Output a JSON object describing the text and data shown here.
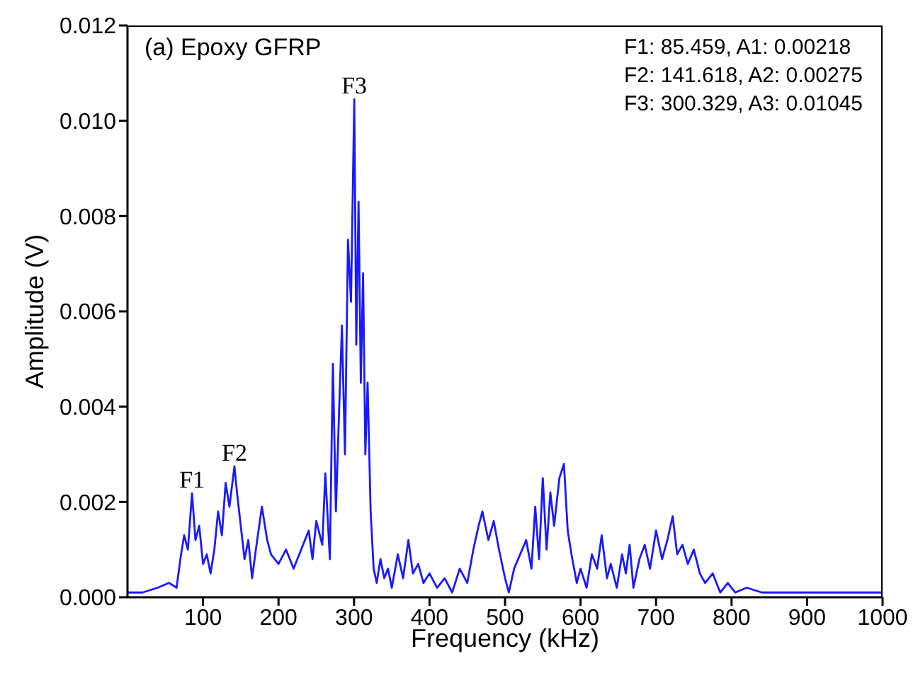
{
  "chart_data": {
    "type": "line",
    "title": "(a) Epoxy GFRP",
    "xlabel": "Frequency (kHz)",
    "ylabel": "Amplitude (V)",
    "x": [
      0,
      20,
      40,
      55,
      65,
      70,
      75,
      80,
      85.459,
      90,
      95,
      100,
      105,
      110,
      115,
      120,
      125,
      130,
      135,
      141.618,
      145,
      150,
      155,
      160,
      165,
      170,
      178,
      185,
      190,
      200,
      210,
      220,
      230,
      240,
      245,
      250,
      258,
      262,
      268,
      272,
      276,
      280,
      284,
      288,
      292,
      296,
      300.329,
      303,
      306,
      309,
      312,
      315,
      318,
      322,
      326,
      330,
      335,
      340,
      345,
      350,
      358,
      365,
      372,
      378,
      385,
      392,
      400,
      410,
      420,
      430,
      440,
      450,
      458,
      465,
      470,
      478,
      485,
      492,
      500,
      505,
      512,
      520,
      528,
      535,
      540,
      545,
      550,
      555,
      560,
      565,
      572,
      578,
      583,
      588,
      595,
      600,
      608,
      615,
      622,
      628,
      635,
      640,
      648,
      655,
      660,
      665,
      670,
      678,
      685,
      692,
      700,
      708,
      715,
      722,
      728,
      735,
      742,
      750,
      758,
      765,
      775,
      785,
      795,
      805,
      820,
      840,
      860,
      900,
      950,
      1000
    ],
    "series": [
      {
        "color": "#1a1aff",
        "values": [
          0.0001,
          0.0001,
          0.0002,
          0.0003,
          0.0002,
          0.0008,
          0.0013,
          0.001,
          0.00218,
          0.0012,
          0.0015,
          0.0007,
          0.0009,
          0.0005,
          0.001,
          0.0018,
          0.0013,
          0.0024,
          0.0019,
          0.00275,
          0.0022,
          0.0015,
          0.0008,
          0.0012,
          0.0004,
          0.001,
          0.0019,
          0.0012,
          0.0009,
          0.0007,
          0.001,
          0.0006,
          0.001,
          0.0014,
          0.0008,
          0.0016,
          0.0011,
          0.0026,
          0.0008,
          0.0049,
          0.0018,
          0.0038,
          0.0057,
          0.003,
          0.0075,
          0.0062,
          0.01045,
          0.0053,
          0.0083,
          0.0045,
          0.0068,
          0.003,
          0.0045,
          0.0018,
          0.0006,
          0.0003,
          0.0008,
          0.0004,
          0.0006,
          0.0002,
          0.0009,
          0.0004,
          0.0012,
          0.0005,
          0.0007,
          0.0003,
          0.0005,
          0.0002,
          0.0004,
          0.0001,
          0.0006,
          0.0003,
          0.001,
          0.0015,
          0.0018,
          0.0012,
          0.0016,
          0.001,
          0.0004,
          0.0001,
          0.0006,
          0.0009,
          0.0012,
          0.0006,
          0.0019,
          0.0008,
          0.0025,
          0.001,
          0.0022,
          0.0015,
          0.0025,
          0.0028,
          0.0014,
          0.0009,
          0.0003,
          0.0006,
          0.0002,
          0.0009,
          0.0006,
          0.0013,
          0.0004,
          0.0007,
          0.0002,
          0.0009,
          0.0005,
          0.0011,
          0.0002,
          0.0008,
          0.0011,
          0.0006,
          0.0014,
          0.0008,
          0.0012,
          0.0017,
          0.0009,
          0.0011,
          0.0007,
          0.001,
          0.0005,
          0.0003,
          0.0005,
          0.0001,
          0.0003,
          0.0001,
          0.0002,
          0.0001,
          0.0001,
          0.0001,
          0.0001,
          0.0001
        ]
      }
    ],
    "xlim": [
      0,
      1000
    ],
    "xticks": [
      100,
      200,
      300,
      400,
      500,
      600,
      700,
      800,
      900,
      1000
    ],
    "ylim": [
      0,
      0.012
    ],
    "yticks": [
      {
        "value": 0,
        "label": "0.000"
      },
      {
        "value": 0.002,
        "label": "0.002"
      },
      {
        "value": 0.004,
        "label": "0.004"
      },
      {
        "value": 0.006,
        "label": "0.006"
      },
      {
        "value": 0.008,
        "label": "0.008"
      },
      {
        "value": 0.01,
        "label": "0.010"
      },
      {
        "value": 0.012,
        "label": "0.012"
      }
    ],
    "grid": false,
    "legend": false,
    "marker": "none",
    "line_style": "solid",
    "annotations": [
      {
        "text": "F1",
        "x": 85.459,
        "y": 0.00218
      },
      {
        "text": "F2",
        "x": 141.618,
        "y": 0.00275
      },
      {
        "text": "F3",
        "x": 300.329,
        "y": 0.01045
      },
      "F1: 85.459, A1: 0.00218",
      "F2: 141.618, A2: 0.00275",
      "F3: 300.329, A3: 0.01045"
    ]
  }
}
